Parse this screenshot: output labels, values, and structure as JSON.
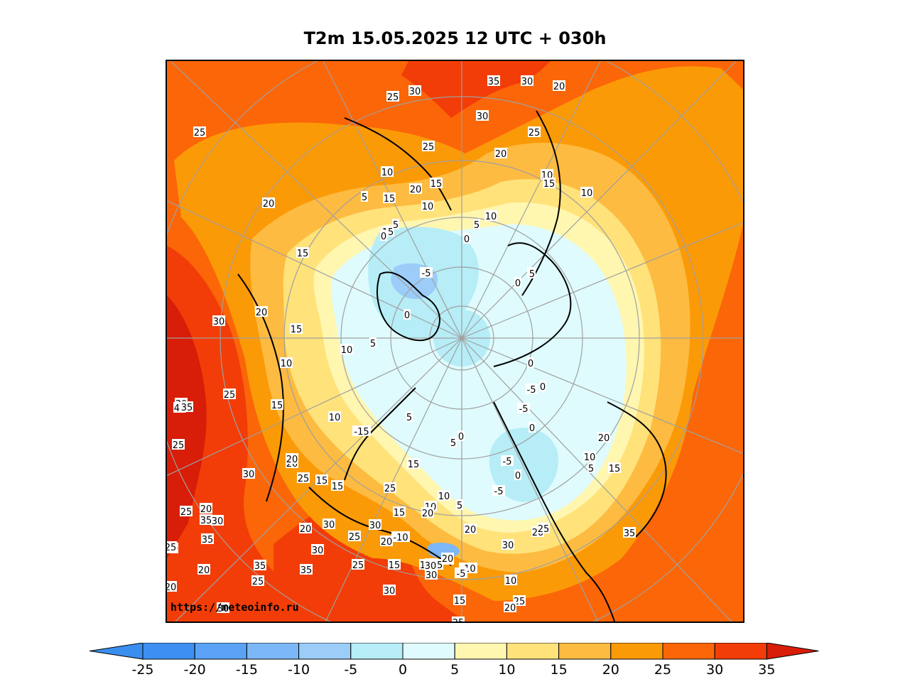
{
  "title": "T2m 15.05.2025 12 UTC + 030h",
  "credit": "https://meteoinfo.ru",
  "colorbar": {
    "ticks": [
      "-25",
      "-20",
      "-15",
      "-10",
      "-5",
      "0",
      "5",
      "10",
      "15",
      "20",
      "25",
      "30",
      "35"
    ],
    "under_color": "#3a8ef0",
    "over_color": "#d81d08",
    "colors": [
      "#3d8ff2",
      "#5aa2f5",
      "#7cb7f7",
      "#9bcdf8",
      "#b6edf7",
      "#dffbfd",
      "#fff6b0",
      "#ffe27a",
      "#fdbb41",
      "#fb9a07",
      "#fb6608",
      "#f23d08"
    ]
  },
  "map_labels": [
    {
      "t": "35"
    },
    {
      "t": "30"
    },
    {
      "t": "20"
    },
    {
      "t": "25"
    },
    {
      "t": "30"
    },
    {
      "t": "30"
    },
    {
      "t": "25"
    },
    {
      "t": "25"
    },
    {
      "t": "25"
    },
    {
      "t": "20"
    },
    {
      "t": "10"
    },
    {
      "t": "10"
    },
    {
      "t": "15"
    },
    {
      "t": "10"
    },
    {
      "t": "20"
    },
    {
      "t": "5"
    },
    {
      "t": "15"
    },
    {
      "t": "15"
    },
    {
      "t": "10"
    },
    {
      "t": "10"
    },
    {
      "t": "5"
    },
    {
      "t": "0"
    },
    {
      "t": "0"
    },
    {
      "t": "5"
    },
    {
      "t": "20"
    },
    {
      "t": "15"
    },
    {
      "t": "15"
    },
    {
      "t": "-5"
    },
    {
      "t": "0"
    },
    {
      "t": "5"
    },
    {
      "t": "5"
    },
    {
      "t": "0"
    },
    {
      "t": "5"
    },
    {
      "t": "20"
    },
    {
      "t": "15"
    },
    {
      "t": "10"
    },
    {
      "t": "0"
    },
    {
      "t": "-5"
    },
    {
      "t": "0"
    },
    {
      "t": "-5"
    },
    {
      "t": "0"
    },
    {
      "t": "20"
    },
    {
      "t": "30"
    },
    {
      "t": "10"
    },
    {
      "t": "25"
    },
    {
      "t": "15"
    },
    {
      "t": "10"
    },
    {
      "t": "-15"
    },
    {
      "t": "5"
    },
    {
      "t": "0"
    },
    {
      "t": "5"
    },
    {
      "t": "5"
    },
    {
      "t": "10"
    },
    {
      "t": "15"
    },
    {
      "t": "-5"
    },
    {
      "t": "0"
    },
    {
      "t": "-5"
    },
    {
      "t": "15"
    },
    {
      "t": "20"
    },
    {
      "t": "35"
    },
    {
      "t": "30"
    },
    {
      "t": "40"
    },
    {
      "t": "25"
    },
    {
      "t": "35"
    },
    {
      "t": "20"
    },
    {
      "t": "15"
    },
    {
      "t": "30"
    },
    {
      "t": "20"
    },
    {
      "t": "25"
    },
    {
      "t": "15"
    },
    {
      "t": "25"
    },
    {
      "t": "10"
    },
    {
      "t": "10"
    },
    {
      "t": "5"
    },
    {
      "t": "15"
    },
    {
      "t": "20"
    },
    {
      "t": "30"
    },
    {
      "t": "30"
    },
    {
      "t": "35"
    },
    {
      "t": "25"
    },
    {
      "t": "-10"
    },
    {
      "t": "20"
    },
    {
      "t": "25"
    },
    {
      "t": "15"
    },
    {
      "t": "20"
    },
    {
      "t": "20"
    },
    {
      "t": "35"
    },
    {
      "t": "30"
    },
    {
      "t": "25"
    },
    {
      "t": "30"
    },
    {
      "t": "15"
    },
    {
      "t": "-10"
    },
    {
      "t": "15"
    },
    {
      "t": "20"
    },
    {
      "t": "-5"
    },
    {
      "t": "30"
    },
    {
      "t": "25"
    },
    {
      "t": "10"
    },
    {
      "t": "20"
    },
    {
      "t": "25"
    },
    {
      "t": "30"
    },
    {
      "t": "20"
    },
    {
      "t": "25"
    },
    {
      "t": "30"
    },
    {
      "t": "20"
    },
    {
      "t": "35"
    },
    {
      "t": "30"
    },
    {
      "t": "25"
    },
    {
      "t": "25"
    },
    {
      "t": "35"
    },
    {
      "t": "15"
    },
    {
      "t": "20"
    },
    {
      "t": "25"
    },
    {
      "t": "20"
    },
    {
      "t": "30"
    },
    {
      "t": "25"
    }
  ]
}
